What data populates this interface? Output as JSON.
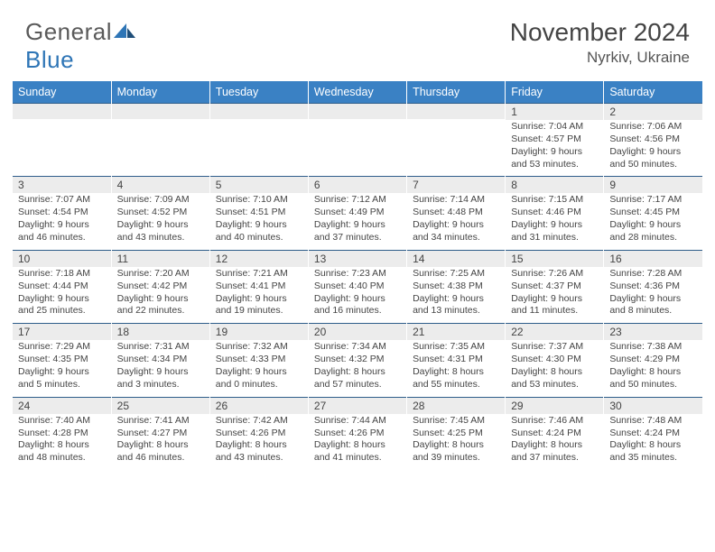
{
  "logo": {
    "general": "General",
    "blue": "Blue"
  },
  "title": "November 2024",
  "location": "Nyrkiv, Ukraine",
  "style": {
    "header_bg": "#3a81c4",
    "header_fg": "#ffffff",
    "daynum_bg": "#ececec",
    "border_color": "#2e5d8a",
    "text_color": "#444444",
    "logo_blue": "#2e75b6",
    "logo_gray": "#5a5a5a",
    "title_fontsize": 28,
    "location_fontsize": 17,
    "dayhead_fontsize": 12.5,
    "body_fontsize": 10.5
  },
  "day_headers": [
    "Sunday",
    "Monday",
    "Tuesday",
    "Wednesday",
    "Thursday",
    "Friday",
    "Saturday"
  ],
  "weeks": [
    [
      null,
      null,
      null,
      null,
      null,
      {
        "n": "1",
        "sr": "7:04 AM",
        "ss": "4:57 PM",
        "dl": "9 hours and 53 minutes."
      },
      {
        "n": "2",
        "sr": "7:06 AM",
        "ss": "4:56 PM",
        "dl": "9 hours and 50 minutes."
      }
    ],
    [
      {
        "n": "3",
        "sr": "7:07 AM",
        "ss": "4:54 PM",
        "dl": "9 hours and 46 minutes."
      },
      {
        "n": "4",
        "sr": "7:09 AM",
        "ss": "4:52 PM",
        "dl": "9 hours and 43 minutes."
      },
      {
        "n": "5",
        "sr": "7:10 AM",
        "ss": "4:51 PM",
        "dl": "9 hours and 40 minutes."
      },
      {
        "n": "6",
        "sr": "7:12 AM",
        "ss": "4:49 PM",
        "dl": "9 hours and 37 minutes."
      },
      {
        "n": "7",
        "sr": "7:14 AM",
        "ss": "4:48 PM",
        "dl": "9 hours and 34 minutes."
      },
      {
        "n": "8",
        "sr": "7:15 AM",
        "ss": "4:46 PM",
        "dl": "9 hours and 31 minutes."
      },
      {
        "n": "9",
        "sr": "7:17 AM",
        "ss": "4:45 PM",
        "dl": "9 hours and 28 minutes."
      }
    ],
    [
      {
        "n": "10",
        "sr": "7:18 AM",
        "ss": "4:44 PM",
        "dl": "9 hours and 25 minutes."
      },
      {
        "n": "11",
        "sr": "7:20 AM",
        "ss": "4:42 PM",
        "dl": "9 hours and 22 minutes."
      },
      {
        "n": "12",
        "sr": "7:21 AM",
        "ss": "4:41 PM",
        "dl": "9 hours and 19 minutes."
      },
      {
        "n": "13",
        "sr": "7:23 AM",
        "ss": "4:40 PM",
        "dl": "9 hours and 16 minutes."
      },
      {
        "n": "14",
        "sr": "7:25 AM",
        "ss": "4:38 PM",
        "dl": "9 hours and 13 minutes."
      },
      {
        "n": "15",
        "sr": "7:26 AM",
        "ss": "4:37 PM",
        "dl": "9 hours and 11 minutes."
      },
      {
        "n": "16",
        "sr": "7:28 AM",
        "ss": "4:36 PM",
        "dl": "9 hours and 8 minutes."
      }
    ],
    [
      {
        "n": "17",
        "sr": "7:29 AM",
        "ss": "4:35 PM",
        "dl": "9 hours and 5 minutes."
      },
      {
        "n": "18",
        "sr": "7:31 AM",
        "ss": "4:34 PM",
        "dl": "9 hours and 3 minutes."
      },
      {
        "n": "19",
        "sr": "7:32 AM",
        "ss": "4:33 PM",
        "dl": "9 hours and 0 minutes."
      },
      {
        "n": "20",
        "sr": "7:34 AM",
        "ss": "4:32 PM",
        "dl": "8 hours and 57 minutes."
      },
      {
        "n": "21",
        "sr": "7:35 AM",
        "ss": "4:31 PM",
        "dl": "8 hours and 55 minutes."
      },
      {
        "n": "22",
        "sr": "7:37 AM",
        "ss": "4:30 PM",
        "dl": "8 hours and 53 minutes."
      },
      {
        "n": "23",
        "sr": "7:38 AM",
        "ss": "4:29 PM",
        "dl": "8 hours and 50 minutes."
      }
    ],
    [
      {
        "n": "24",
        "sr": "7:40 AM",
        "ss": "4:28 PM",
        "dl": "8 hours and 48 minutes."
      },
      {
        "n": "25",
        "sr": "7:41 AM",
        "ss": "4:27 PM",
        "dl": "8 hours and 46 minutes."
      },
      {
        "n": "26",
        "sr": "7:42 AM",
        "ss": "4:26 PM",
        "dl": "8 hours and 43 minutes."
      },
      {
        "n": "27",
        "sr": "7:44 AM",
        "ss": "4:26 PM",
        "dl": "8 hours and 41 minutes."
      },
      {
        "n": "28",
        "sr": "7:45 AM",
        "ss": "4:25 PM",
        "dl": "8 hours and 39 minutes."
      },
      {
        "n": "29",
        "sr": "7:46 AM",
        "ss": "4:24 PM",
        "dl": "8 hours and 37 minutes."
      },
      {
        "n": "30",
        "sr": "7:48 AM",
        "ss": "4:24 PM",
        "dl": "8 hours and 35 minutes."
      }
    ]
  ],
  "labels": {
    "sunrise": "Sunrise:",
    "sunset": "Sunset:",
    "daylight": "Daylight:"
  }
}
